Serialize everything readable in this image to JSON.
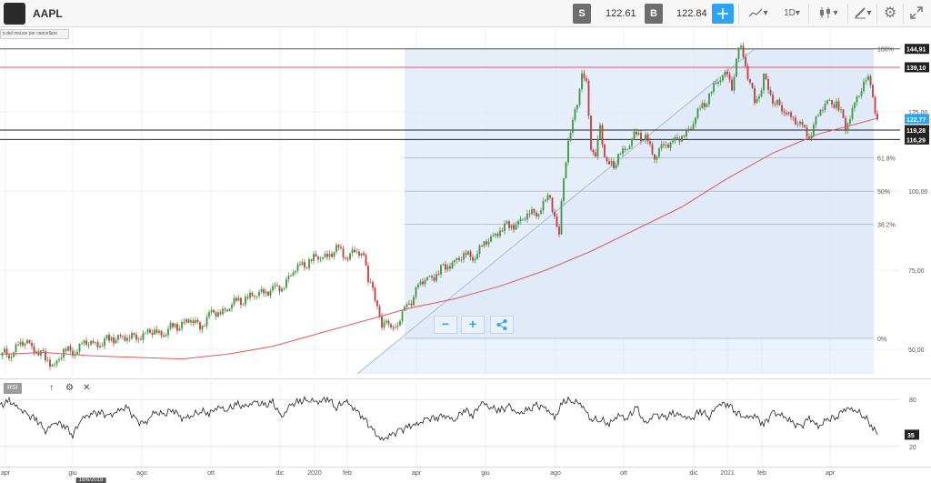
{
  "toolbar": {
    "logo": "",
    "symbol": "AAPL",
    "sell_label": "S",
    "sell_price": "122.61",
    "buy_label": "B",
    "buy_price": "122.84",
    "timeframe": "1D",
    "timeframe_arrow": "▾",
    "line_arrow": "▾",
    "candle_arrow": "▾",
    "draw_arrow": "▾",
    "tooltip": "o del mouse per cancellare",
    "colors": {
      "active": "#2ea3f2",
      "box": "#6d6d6d"
    }
  },
  "x_axis": {
    "ticks": [
      {
        "label": "apr",
        "x": 6
      },
      {
        "label": "giu",
        "x": 80
      },
      {
        "label": "ago",
        "x": 156
      },
      {
        "label": "ott",
        "x": 232
      },
      {
        "label": "dic",
        "x": 308
      },
      {
        "label": "2020",
        "x": 346
      },
      {
        "label": "feb",
        "x": 382
      },
      {
        "label": "apr",
        "x": 458
      },
      {
        "label": "giu",
        "x": 534
      },
      {
        "label": "ago",
        "x": 611
      },
      {
        "label": "ott",
        "x": 686
      },
      {
        "label": "dic",
        "x": 763
      },
      {
        "label": "2021",
        "x": 800
      },
      {
        "label": "feb",
        "x": 838
      },
      {
        "label": "apr",
        "x": 913
      }
    ],
    "highlight": "18/6/2019"
  },
  "rsi_panel": {
    "label": "RSI (14)",
    "up_icon": "↑",
    "gear_icon": "⚙",
    "close_icon": "✕"
  },
  "zoom": {
    "minus": "−",
    "plus": "+",
    "share": "<"
  },
  "chart_data": [
    {
      "type": "candlestick",
      "symbol": "AAPL",
      "y_axis_ticks": [
        "125,00",
        "100,00",
        "75,00",
        "50,00"
      ],
      "y_axis_values": [
        125,
        100,
        75,
        50
      ],
      "ylim": [
        40,
        150
      ],
      "price_labels": [
        {
          "text": "144,91",
          "value": 144.91,
          "color": "#222222"
        },
        {
          "text": "139,10",
          "value": 139.1,
          "color": "#222222"
        },
        {
          "text": "122,77",
          "value": 122.77,
          "color": "#2ea3f2"
        },
        {
          "text": "119,28",
          "value": 119.28,
          "color": "#222222"
        },
        {
          "text": "116,29",
          "value": 116.29,
          "color": "#222222"
        }
      ],
      "horizontal_lines": [
        {
          "value": 144.91,
          "color": "#555555"
        },
        {
          "value": 139.1,
          "color": "#e25a5a"
        },
        {
          "value": 119.28,
          "color": "#222222"
        },
        {
          "value": 116.29,
          "color": "#222222"
        }
      ],
      "fibonacci": [
        {
          "label": "100%",
          "value": 144.91
        },
        {
          "label": "61.8%",
          "value": 110.5
        },
        {
          "label": "50%",
          "value": 100.0
        },
        {
          "label": "38.2%",
          "value": 89.5
        },
        {
          "label": "0%",
          "value": 53.5
        }
      ],
      "series": [
        {
          "kind": "close",
          "x": [
            0,
            10,
            20,
            30,
            40,
            50,
            60,
            70,
            80,
            90,
            100,
            110,
            120,
            130,
            140,
            150,
            160,
            170,
            180,
            190,
            200,
            210,
            220,
            230,
            240,
            250,
            260,
            270,
            280,
            290,
            300,
            310,
            320,
            330,
            340,
            350,
            360,
            370,
            380,
            390,
            400,
            405,
            410,
            415,
            420,
            425,
            430,
            435,
            440,
            445,
            450,
            455,
            460,
            470,
            480,
            490,
            500,
            510,
            520,
            530,
            540,
            550,
            560,
            570,
            580,
            590,
            600,
            605,
            610,
            615,
            620,
            625,
            630,
            635,
            640,
            645,
            650,
            655,
            660,
            665,
            670,
            675,
            680,
            690,
            700,
            710,
            720,
            730,
            740,
            750,
            760,
            770,
            780,
            790,
            800,
            805,
            810,
            815,
            820,
            825,
            830,
            835,
            840,
            845,
            850,
            860,
            870,
            880,
            890,
            900,
            910,
            920,
            930,
            940,
            950,
            955,
            960,
            965
          ],
          "y": [
            48,
            49,
            51,
            52,
            50,
            47,
            45,
            49,
            50,
            51,
            52,
            52,
            53,
            54,
            53,
            55,
            54,
            56,
            55,
            57,
            58,
            59,
            58,
            60,
            62,
            63,
            65,
            66,
            67,
            69,
            68,
            70,
            74,
            76,
            78,
            79,
            80,
            81,
            80,
            81,
            79,
            72,
            70,
            62,
            58,
            60,
            55,
            58,
            60,
            62,
            65,
            67,
            70,
            72,
            74,
            76,
            78,
            79,
            80,
            82,
            85,
            88,
            89,
            90,
            92,
            94,
            96,
            98,
            92,
            86,
            105,
            115,
            122,
            129,
            136,
            134,
            115,
            110,
            120,
            112,
            108,
            107,
            112,
            114,
            118,
            117,
            110,
            116,
            114,
            118,
            120,
            126,
            130,
            135,
            138,
            133,
            142,
            145,
            140,
            134,
            128,
            130,
            136,
            133,
            128,
            126,
            124,
            120,
            118,
            124,
            128,
            128,
            120,
            128,
            133,
            135,
            130,
            123
          ]
        },
        {
          "kind": "ma200",
          "color": "#e25a5a",
          "x": [
            0,
            50,
            100,
            150,
            200,
            250,
            300,
            350,
            400,
            450,
            500,
            550,
            600,
            650,
            700,
            750,
            800,
            850,
            900,
            965
          ],
          "y": [
            48.5,
            49,
            48,
            47.5,
            47,
            48.5,
            51,
            55,
            59,
            63,
            66,
            70,
            75,
            81,
            88,
            95,
            104,
            112,
            118,
            123
          ]
        }
      ]
    },
    {
      "type": "line",
      "name": "RSI (14)",
      "y_axis_ticks": [
        "80",
        "20"
      ],
      "ylim": [
        0,
        100
      ],
      "current_label": "35",
      "x": [
        0,
        10,
        20,
        30,
        40,
        50,
        60,
        70,
        80,
        90,
        100,
        110,
        120,
        130,
        140,
        150,
        160,
        170,
        180,
        190,
        200,
        210,
        220,
        230,
        240,
        250,
        260,
        270,
        280,
        290,
        300,
        310,
        320,
        330,
        340,
        350,
        360,
        370,
        380,
        390,
        400,
        410,
        420,
        430,
        440,
        450,
        460,
        470,
        480,
        490,
        500,
        510,
        520,
        530,
        540,
        550,
        560,
        570,
        580,
        590,
        600,
        610,
        620,
        630,
        640,
        650,
        660,
        670,
        680,
        690,
        700,
        710,
        720,
        730,
        740,
        750,
        760,
        770,
        780,
        790,
        800,
        810,
        820,
        830,
        840,
        850,
        860,
        870,
        880,
        890,
        900,
        910,
        920,
        930,
        940,
        950,
        960,
        965
      ],
      "y": [
        72,
        78,
        70,
        60,
        55,
        40,
        50,
        48,
        35,
        55,
        62,
        64,
        58,
        66,
        70,
        52,
        50,
        64,
        60,
        68,
        56,
        58,
        66,
        62,
        70,
        67,
        74,
        70,
        78,
        72,
        76,
        58,
        73,
        78,
        80,
        76,
        82,
        70,
        78,
        68,
        57,
        40,
        28,
        35,
        40,
        46,
        49,
        55,
        57,
        60,
        52,
        68,
        60,
        76,
        70,
        66,
        71,
        62,
        66,
        72,
        70,
        56,
        78,
        79,
        73,
        54,
        55,
        48,
        60,
        56,
        70,
        48,
        62,
        56,
        62,
        60,
        54,
        66,
        58,
        73,
        75,
        64,
        56,
        60,
        48,
        63,
        60,
        52,
        44,
        57,
        45,
        54,
        58,
        69,
        66,
        60,
        44,
        35
      ]
    }
  ]
}
